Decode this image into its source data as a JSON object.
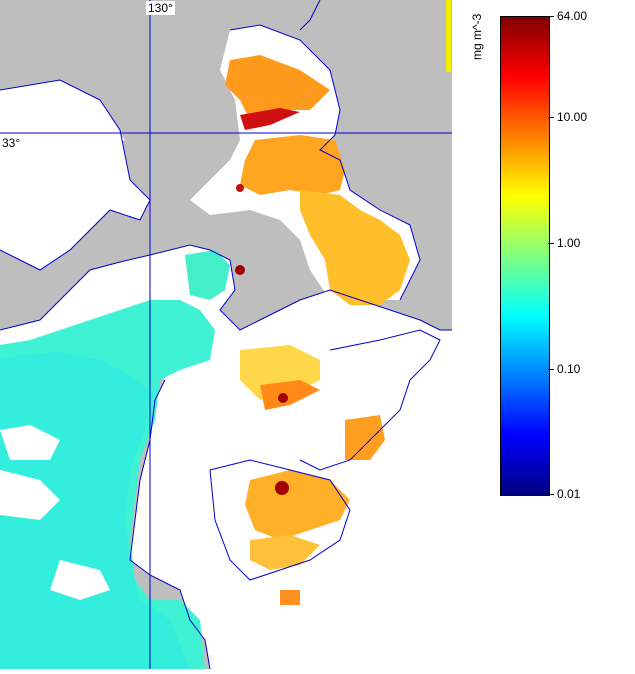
{
  "map": {
    "grid": {
      "lon_label": "130°",
      "lat_label": "33°"
    },
    "colors": {
      "land": "#bebebe",
      "no_data": "#ffffff",
      "coast": "#0000cc",
      "gridline": "#0000cc"
    }
  },
  "colorbar": {
    "unit": "mg m^-3",
    "scale": "log",
    "ticks": [
      "64.00",
      "10.00",
      "1.00",
      "0.10",
      "0.01"
    ],
    "colormap": [
      "#800000",
      "#ff0000",
      "#ff8000",
      "#ffff00",
      "#80ff80",
      "#00ffff",
      "#0080ff",
      "#0000ff",
      "#000080"
    ]
  }
}
